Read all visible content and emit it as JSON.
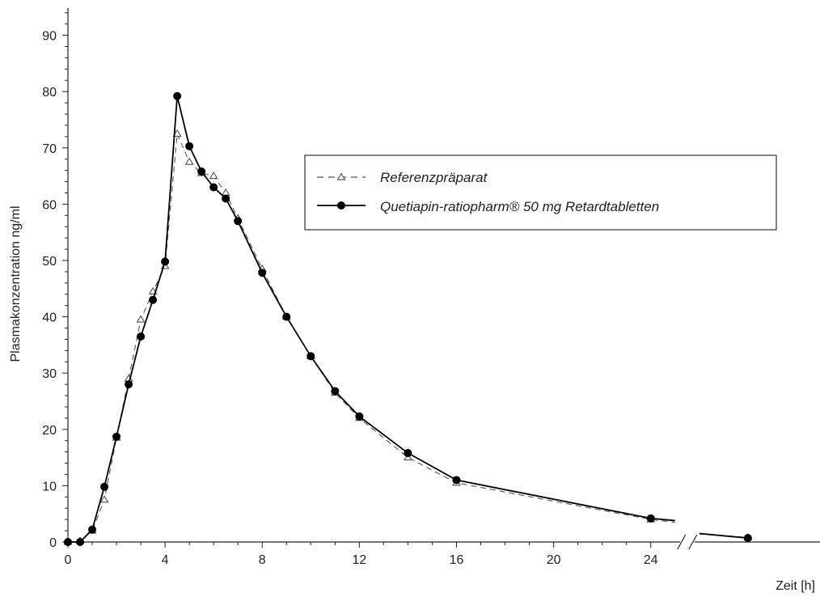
{
  "chart_data": {
    "type": "line",
    "xlabel": "Zeit [h]",
    "ylabel": "Plasmakonzentration ng/ml",
    "ylim": [
      0,
      95
    ],
    "xlim": [
      0,
      30
    ],
    "yticks": [
      0,
      10,
      20,
      30,
      40,
      50,
      60,
      70,
      80,
      90
    ],
    "xticks": [
      0,
      4,
      8,
      12,
      16,
      20,
      24
    ],
    "grid": false,
    "legend_position": "right",
    "axis_break": "between 24 and the last sampling point",
    "series": [
      {
        "name": "Referenzpräparat",
        "style": "dashed",
        "marker": "open-triangle",
        "color": "#555555",
        "x": [
          0,
          0.5,
          1,
          1.5,
          2,
          2.5,
          3,
          3.5,
          4,
          4.5,
          5,
          5.5,
          6,
          6.5,
          7,
          8,
          9,
          10,
          11,
          12,
          14,
          16,
          24,
          25,
          26,
          28
        ],
        "y": [
          0,
          0.2,
          2.0,
          7.5,
          18.5,
          29,
          39.5,
          44.5,
          49,
          72.5,
          67.5,
          65.5,
          65,
          62,
          57.5,
          48.5,
          40,
          33,
          26.5,
          22,
          15,
          10.5,
          4,
          3.5,
          1.5,
          0.8
        ]
      },
      {
        "name": "Quetiapin-ratiopharm® 50 mg Retardtabletten",
        "style": "solid",
        "marker": "filled-circle",
        "color": "#000000",
        "x": [
          0,
          0.5,
          1,
          1.5,
          2,
          2.5,
          3,
          3.5,
          4,
          4.5,
          5,
          5.5,
          6,
          6.5,
          7,
          8,
          9,
          10,
          11,
          12,
          14,
          16,
          24,
          25,
          26,
          28
        ],
        "y": [
          0,
          0,
          2.2,
          9.8,
          18.7,
          28,
          36.5,
          43,
          49.8,
          79.2,
          70.3,
          65.8,
          63,
          61,
          57,
          47.8,
          40,
          33,
          26.8,
          22.3,
          15.8,
          11,
          4.2,
          3.8,
          1.5,
          0.7
        ]
      }
    ]
  }
}
